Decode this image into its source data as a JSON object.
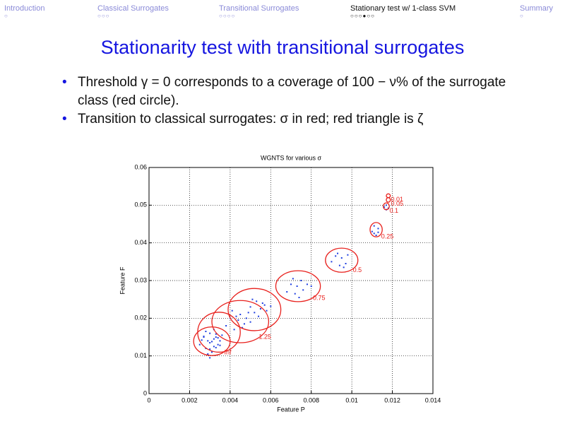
{
  "slide": {
    "nav": [
      "Introduction",
      "Classical Surrogates",
      "Transitional Surrogates",
      "Stationary test w/ 1-class SVM",
      "Summary"
    ],
    "title": "Stationarity test with transitional surrogates",
    "bullets": [
      "Threshold γ = 0 corresponds to a coverage of 100 − ν% of the surrogate class (red circle).",
      "Transition to classical surrogates: σ in red; red triangle is ζ"
    ]
  },
  "chart_data": {
    "type": "scatter",
    "title": "WGNTS for various σ",
    "x_label": "Feature P",
    "y_label": "Feature F",
    "xlim": [
      0,
      0.014
    ],
    "xticks": [
      0,
      0.002,
      0.004,
      0.006,
      0.008,
      0.01,
      0.012,
      0.014
    ],
    "ylim": [
      0,
      0.06
    ],
    "yticks": [
      0,
      0.01,
      0.02,
      0.03,
      0.04,
      0.05,
      0.06
    ],
    "grid": true,
    "series": [
      {
        "color": "#1f3fe0",
        "x": [
          0.0025,
          0.0027,
          0.0028,
          0.0029,
          0.003,
          0.003,
          0.0031,
          0.0032,
          0.0032,
          0.0033,
          0.0034,
          0.0035,
          0.0036,
          0.0026,
          0.0028,
          0.003,
          0.0031,
          0.0033,
          0.0034,
          0.0029,
          0.0032,
          0.0035,
          0.0027,
          0.003,
          0.0033,
          0.0038,
          0.004,
          0.0042,
          0.0044,
          0.0045,
          0.0047,
          0.0048,
          0.005,
          0.0041,
          0.0046,
          0.0043,
          0.0049,
          0.005,
          0.0052,
          0.0053,
          0.0055,
          0.0057,
          0.0051,
          0.0054,
          0.0056,
          0.0058,
          0.006,
          0.0068,
          0.007,
          0.0072,
          0.0073,
          0.0075,
          0.0076,
          0.0078,
          0.0071,
          0.0074,
          0.008,
          0.009,
          0.0092,
          0.0094,
          0.0095,
          0.0097,
          0.0098,
          0.0093,
          0.0096,
          0.011,
          0.0111,
          0.0112,
          0.0113,
          0.0111,
          0.0113,
          0.0116,
          0.0117,
          0.0118,
          0.0117
        ],
        "values": [
          0.013,
          0.015,
          0.012,
          0.014,
          0.0135,
          0.016,
          0.011,
          0.0145,
          0.0125,
          0.015,
          0.013,
          0.014,
          0.0155,
          0.0142,
          0.0165,
          0.0118,
          0.0138,
          0.0122,
          0.0148,
          0.0105,
          0.017,
          0.0128,
          0.0152,
          0.0095,
          0.0158,
          0.018,
          0.02,
          0.017,
          0.0195,
          0.021,
          0.0185,
          0.02,
          0.019,
          0.022,
          0.0175,
          0.0205,
          0.0215,
          0.023,
          0.0215,
          0.0245,
          0.0225,
          0.0235,
          0.025,
          0.0205,
          0.024,
          0.022,
          0.0232,
          0.027,
          0.029,
          0.0265,
          0.0285,
          0.03,
          0.0275,
          0.029,
          0.0305,
          0.0255,
          0.0285,
          0.035,
          0.0365,
          0.034,
          0.036,
          0.0345,
          0.0368,
          0.0372,
          0.0335,
          0.043,
          0.0445,
          0.042,
          0.0438,
          0.0425,
          0.0428,
          0.0495,
          0.05,
          0.0492,
          0.0488
        ]
      }
    ],
    "ellipses": {
      "color": "#e8201c",
      "cx": [
        0.0031,
        0.00345,
        0.0045,
        0.0052,
        0.00735,
        0.0095,
        0.0112,
        0.0117,
        0.0118,
        0.0118
      ],
      "cy": [
        0.0139,
        0.0163,
        0.0191,
        0.0223,
        0.0285,
        0.0354,
        0.0435,
        0.0497,
        0.0514,
        0.0525
      ],
      "rx": [
        0.0009,
        0.00105,
        0.0014,
        0.0013,
        0.0011,
        0.0008,
        0.0003,
        0.00015,
        0.0001,
        0.0001
      ],
      "ry": [
        0.0038,
        0.0053,
        0.0056,
        0.0056,
        0.0041,
        0.0032,
        0.0019,
        0.0009,
        0.0006,
        0.0005
      ],
      "labels": [
        "Inf",
        null,
        "1.25",
        null,
        "0.75",
        "0.5",
        "0.25",
        "0.1",
        "0.05",
        "0.01"
      ]
    }
  }
}
